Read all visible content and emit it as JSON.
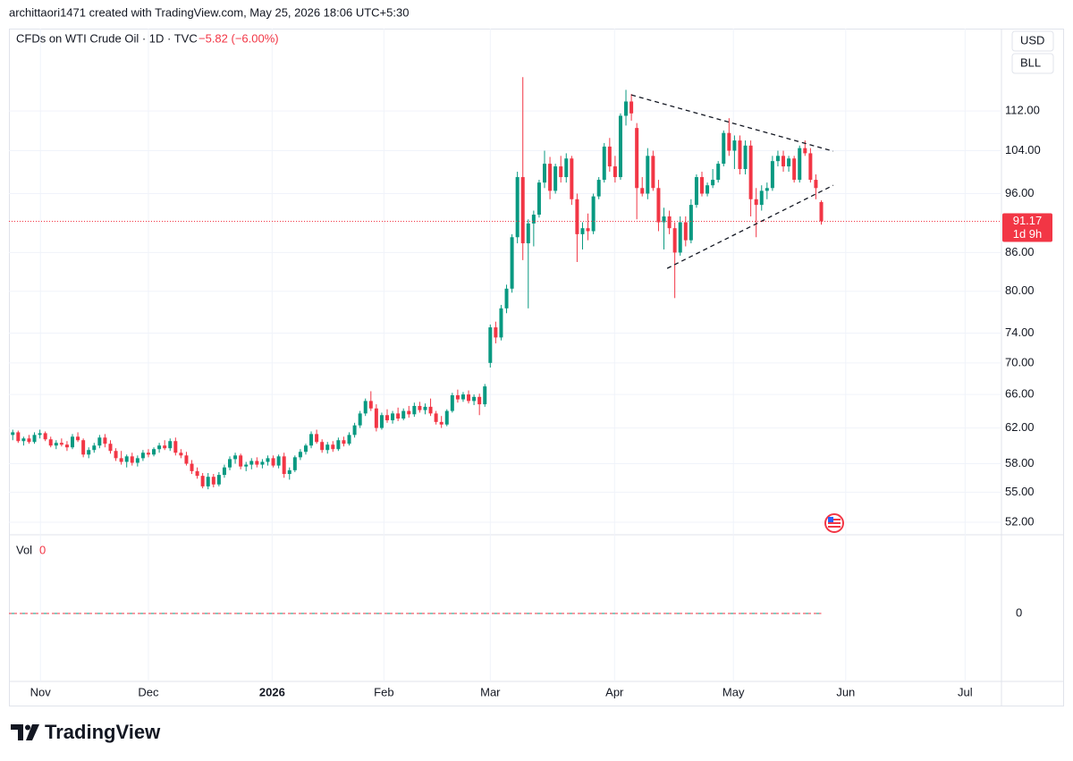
{
  "header": {
    "author_line": "archittaori1471 created with TradingView.com, May 25, 2026 18:06 UTC+5:30",
    "symbol": "CFDs on WTI Crude Oil · 1D · TVC",
    "change": "−5.82 (−6.00%)",
    "currency": "USD",
    "unit": "BLL"
  },
  "chart_data": {
    "type": "candlestick",
    "log_scale": true,
    "grid": true,
    "up_color": "#089981",
    "down_color": "#f23645",
    "xlim": [
      -0.7,
      182.2
    ],
    "xticks": [
      {
        "value": 5.1,
        "label": "Nov"
      },
      {
        "value": 25,
        "label": "Dec"
      },
      {
        "value": 47.8,
        "label": "2026"
      },
      {
        "value": 68.4,
        "label": "Feb"
      },
      {
        "value": 88,
        "label": "Mar"
      },
      {
        "value": 110.9,
        "label": "Apr"
      },
      {
        "value": 132.8,
        "label": "May"
      },
      {
        "value": 153.5,
        "label": "Jun"
      },
      {
        "value": 175.5,
        "label": "Jul"
      }
    ],
    "ylim": [
      50.8,
      130.6
    ],
    "yticks": [
      {
        "value": 112,
        "label": "112.00"
      },
      {
        "value": 104,
        "label": "104.00"
      },
      {
        "value": 96,
        "label": "96.00"
      },
      {
        "value": 86,
        "label": "86.00"
      },
      {
        "value": 80,
        "label": "80.00"
      },
      {
        "value": 74,
        "label": "74.00"
      },
      {
        "value": 70,
        "label": "70.00"
      },
      {
        "value": 66,
        "label": "66.00"
      },
      {
        "value": 62,
        "label": "62.00"
      },
      {
        "value": 58,
        "label": "58.00"
      },
      {
        "value": 55,
        "label": "55.00"
      },
      {
        "value": 52,
        "label": "52.00"
      }
    ],
    "last_price": 91.17,
    "countdown": "1d 9h",
    "trendlines": [
      {
        "x": [
          114,
          151.2
        ],
        "y": [
          115.4,
          103.9
        ]
      },
      {
        "x": [
          120.6,
          151.2
        ],
        "y": [
          83.5,
          97.5
        ]
      }
    ],
    "volume_legend": "Vol",
    "volume_last": 0,
    "volume_ticks": [
      0
    ],
    "ohlc": [
      [
        61.2,
        61.8,
        60.6,
        61.5
      ],
      [
        61.5,
        61.7,
        60.3,
        60.5
      ],
      [
        60.5,
        61.0,
        60.0,
        60.8
      ],
      [
        60.8,
        61.2,
        60.2,
        60.4
      ],
      [
        60.4,
        61.5,
        60.2,
        61.2
      ],
      [
        61.2,
        61.8,
        60.8,
        61.4
      ],
      [
        61.4,
        61.6,
        60.5,
        60.7
      ],
      [
        60.7,
        61.0,
        59.8,
        60.0
      ],
      [
        60.0,
        60.6,
        59.6,
        60.3
      ],
      [
        60.3,
        60.8,
        59.9,
        60.1
      ],
      [
        60.1,
        60.5,
        59.4,
        59.8
      ],
      [
        59.8,
        61.3,
        59.6,
        61.0
      ],
      [
        61.0,
        61.5,
        60.4,
        60.6
      ],
      [
        60.6,
        60.8,
        58.7,
        59.0
      ],
      [
        59.0,
        59.8,
        58.6,
        59.5
      ],
      [
        59.5,
        60.3,
        59.2,
        60.0
      ],
      [
        60.0,
        61.2,
        59.7,
        60.9
      ],
      [
        60.9,
        61.3,
        59.8,
        60.2
      ],
      [
        60.2,
        60.6,
        59.1,
        59.4
      ],
      [
        59.4,
        59.7,
        58.3,
        58.6
      ],
      [
        58.6,
        59.4,
        57.9,
        58.2
      ],
      [
        58.2,
        59.0,
        57.6,
        58.8
      ],
      [
        58.8,
        59.2,
        57.8,
        58.1
      ],
      [
        58.1,
        58.9,
        57.7,
        58.6
      ],
      [
        58.6,
        59.5,
        58.3,
        59.2
      ],
      [
        59.2,
        59.6,
        58.7,
        59.0
      ],
      [
        59.0,
        59.8,
        58.8,
        59.6
      ],
      [
        59.6,
        60.3,
        59.2,
        60.0
      ],
      [
        60.0,
        60.6,
        59.5,
        59.7
      ],
      [
        59.7,
        60.8,
        59.4,
        60.5
      ],
      [
        60.5,
        60.9,
        58.9,
        59.2
      ],
      [
        59.2,
        59.6,
        58.6,
        58.9
      ],
      [
        58.9,
        59.3,
        57.8,
        58.0
      ],
      [
        58.0,
        58.4,
        56.9,
        57.2
      ],
      [
        57.2,
        57.6,
        56.4,
        56.7
      ],
      [
        56.7,
        57.0,
        55.4,
        55.6
      ],
      [
        55.6,
        57.0,
        55.3,
        56.6
      ],
      [
        56.6,
        56.9,
        55.5,
        55.8
      ],
      [
        55.8,
        57.1,
        55.6,
        56.8
      ],
      [
        56.8,
        57.9,
        56.5,
        57.6
      ],
      [
        57.6,
        58.8,
        57.3,
        58.5
      ],
      [
        58.5,
        59.2,
        58.0,
        58.9
      ],
      [
        58.9,
        59.1,
        57.4,
        57.7
      ],
      [
        57.7,
        58.2,
        57.2,
        57.9
      ],
      [
        57.9,
        58.6,
        57.4,
        58.3
      ],
      [
        58.3,
        58.7,
        57.6,
        57.9
      ],
      [
        57.9,
        58.5,
        57.5,
        58.2
      ],
      [
        58.2,
        58.9,
        57.8,
        58.6
      ],
      [
        58.6,
        58.9,
        57.6,
        57.8
      ],
      [
        57.8,
        59.0,
        57.5,
        58.8
      ],
      [
        58.8,
        59.2,
        56.5,
        56.9
      ],
      [
        56.9,
        57.6,
        56.3,
        57.3
      ],
      [
        57.3,
        58.9,
        57.1,
        58.7
      ],
      [
        58.7,
        59.6,
        58.4,
        59.3
      ],
      [
        59.3,
        60.2,
        59.0,
        60.0
      ],
      [
        60.0,
        61.6,
        59.7,
        61.3
      ],
      [
        61.3,
        61.8,
        60.2,
        60.4
      ],
      [
        60.4,
        60.7,
        59.2,
        59.5
      ],
      [
        59.5,
        60.4,
        59.1,
        60.1
      ],
      [
        60.1,
        60.5,
        59.3,
        59.6
      ],
      [
        59.6,
        60.9,
        59.4,
        60.6
      ],
      [
        60.6,
        61.0,
        59.9,
        60.2
      ],
      [
        60.2,
        61.5,
        60.0,
        61.2
      ],
      [
        61.2,
        62.6,
        60.9,
        62.3
      ],
      [
        62.3,
        64.0,
        62.0,
        63.7
      ],
      [
        63.7,
        65.5,
        63.4,
        65.2
      ],
      [
        65.2,
        66.4,
        64.0,
        64.3
      ],
      [
        64.3,
        64.8,
        61.6,
        62.0
      ],
      [
        62.0,
        63.8,
        61.8,
        63.5
      ],
      [
        63.5,
        64.2,
        62.6,
        62.9
      ],
      [
        62.9,
        64.0,
        62.5,
        63.7
      ],
      [
        63.7,
        64.4,
        62.8,
        63.1
      ],
      [
        63.1,
        64.3,
        62.9,
        64.0
      ],
      [
        64.0,
        64.6,
        63.2,
        63.6
      ],
      [
        63.6,
        65.0,
        63.3,
        64.6
      ],
      [
        64.6,
        65.1,
        63.8,
        64.1
      ],
      [
        64.1,
        64.9,
        63.6,
        64.5
      ],
      [
        64.5,
        65.5,
        63.4,
        63.7
      ],
      [
        63.7,
        64.0,
        62.4,
        62.7
      ],
      [
        62.7,
        63.4,
        62.0,
        62.4
      ],
      [
        62.4,
        64.2,
        62.2,
        64.0
      ],
      [
        64.0,
        66.2,
        63.8,
        65.9
      ],
      [
        65.9,
        66.6,
        65.0,
        65.4
      ],
      [
        65.4,
        66.3,
        65.1,
        66.0
      ],
      [
        66.0,
        66.5,
        64.9,
        65.2
      ],
      [
        65.2,
        66.0,
        64.7,
        65.7
      ],
      [
        65.7,
        66.1,
        63.5,
        64.8
      ],
      [
        64.8,
        67.3,
        64.5,
        67.0
      ],
      [
        70.0,
        75.2,
        69.4,
        74.8
      ],
      [
        74.8,
        75.6,
        72.6,
        73.4
      ],
      [
        73.4,
        78.0,
        73.0,
        77.5
      ],
      [
        77.5,
        81.0,
        76.8,
        80.4
      ],
      [
        80.4,
        89.0,
        79.8,
        88.5
      ],
      [
        88.5,
        100.0,
        87.5,
        99.0
      ],
      [
        99.0,
        119.3,
        84.8,
        87.5
      ],
      [
        87.5,
        91.5,
        77.5,
        90.8
      ],
      [
        90.8,
        93.0,
        87.0,
        92.3
      ],
      [
        92.3,
        98.5,
        91.8,
        98.0
      ],
      [
        98.0,
        104.0,
        97.0,
        101.5
      ],
      [
        101.5,
        102.8,
        95.0,
        96.5
      ],
      [
        96.5,
        101.5,
        96.0,
        101.0
      ],
      [
        101.0,
        103.0,
        98.0,
        99.0
      ],
      [
        99.0,
        103.5,
        98.0,
        102.5
      ],
      [
        102.5,
        103.0,
        94.0,
        95.0
      ],
      [
        95.0,
        96.0,
        84.5,
        89.0
      ],
      [
        89.0,
        91.0,
        86.5,
        90.0
      ],
      [
        90.0,
        92.5,
        88.0,
        89.5
      ],
      [
        89.5,
        96.0,
        89.0,
        95.5
      ],
      [
        95.5,
        99.0,
        95.0,
        98.5
      ],
      [
        98.5,
        105.5,
        98.0,
        104.8
      ],
      [
        104.8,
        106.5,
        100.0,
        101.0
      ],
      [
        101.0,
        103.0,
        98.0,
        99.0
      ],
      [
        99.0,
        111.5,
        98.5,
        111.0
      ],
      [
        111.0,
        116.5,
        109.0,
        114.0
      ],
      [
        114.0,
        115.6,
        110.0,
        111.5
      ],
      [
        108.5,
        109.5,
        91.5,
        97.0
      ],
      [
        97.0,
        99.0,
        95.5,
        96.0
      ],
      [
        96.0,
        104.5,
        95.0,
        103.0
      ],
      [
        103.0,
        104.0,
        96.5,
        97.0
      ],
      [
        97.0,
        98.5,
        89.5,
        91.0
      ],
      [
        91.0,
        93.5,
        86.5,
        92.0
      ],
      [
        92.0,
        93.0,
        89.0,
        90.0
      ],
      [
        90.0,
        91.0,
        79.0,
        86.0
      ],
      [
        86.0,
        92.0,
        85.5,
        91.0
      ],
      [
        91.0,
        92.0,
        87.0,
        88.0
      ],
      [
        88.0,
        95.0,
        87.5,
        94.0
      ],
      [
        94.0,
        99.5,
        93.5,
        99.0
      ],
      [
        99.0,
        100.0,
        95.5,
        96.0
      ],
      [
        96.0,
        98.0,
        95.5,
        97.5
      ],
      [
        97.5,
        100.5,
        97.0,
        98.5
      ],
      [
        98.5,
        102.0,
        98.0,
        101.5
      ],
      [
        101.5,
        108.0,
        101.0,
        107.5
      ],
      [
        107.5,
        110.5,
        103.0,
        104.0
      ],
      [
        104.0,
        107.0,
        100.5,
        106.0
      ],
      [
        106.0,
        107.0,
        99.5,
        100.5
      ],
      [
        100.5,
        106.0,
        99.5,
        105.0
      ],
      [
        105.0,
        106.0,
        92.0,
        95.0
      ],
      [
        95.0,
        97.0,
        88.5,
        94.0
      ],
      [
        94.0,
        97.5,
        93.0,
        96.5
      ],
      [
        96.5,
        98.0,
        95.0,
        97.0
      ],
      [
        97.0,
        103.0,
        96.5,
        102.0
      ],
      [
        102.0,
        104.0,
        101.0,
        103.0
      ],
      [
        103.0,
        104.0,
        100.0,
        101.0
      ],
      [
        101.0,
        103.0,
        100.0,
        102.5
      ],
      [
        102.5,
        103.0,
        98.0,
        98.5
      ],
      [
        98.5,
        105.0,
        98.0,
        104.5
      ],
      [
        104.5,
        106.0,
        103.0,
        103.5
      ],
      [
        103.5,
        104.5,
        98.0,
        98.5
      ],
      [
        98.5,
        99.5,
        95.0,
        96.99
      ],
      [
        94.5,
        94.8,
        90.6,
        91.17
      ]
    ]
  },
  "footer": {
    "brand": "TradingView"
  }
}
